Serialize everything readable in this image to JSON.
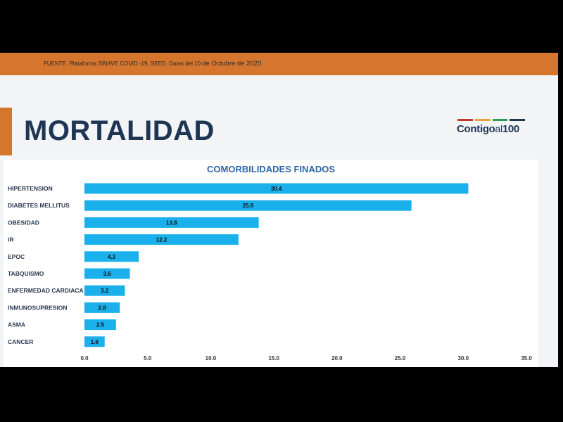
{
  "source": {
    "text_prefix": "FUENTE. Plataforma SINAVE COVID -19, SEED. Datos del 10 ",
    "text_suffix": "de Octubre de 2020"
  },
  "page_title": "MORTALIDAD",
  "logo": {
    "text_main": "Contigo",
    "text_al": "al",
    "text_num": "100",
    "bar_colors": [
      "#c0392b",
      "#e8a33d",
      "#2e9e5b",
      "#1e3654"
    ]
  },
  "colors": {
    "accent_orange": "#d5752e",
    "title_navy": "#1e3654",
    "bar_fill": "#1ab0ec",
    "chart_title": "#2d66a8"
  },
  "chart_data": {
    "type": "bar",
    "orientation": "horizontal",
    "title": "COMORBILIDADES FINADOS",
    "categories": [
      "HIPERTENSION",
      "DIABETES MELLITUS",
      "OBESIDAD",
      "IR",
      "EPOC",
      "TABQUISMO",
      "ENFERMEDAD CARDIACA",
      "INMUNOSUPRESION",
      "ASMA",
      "CANCER"
    ],
    "values": [
      30.4,
      25.9,
      13.8,
      12.2,
      4.3,
      3.6,
      3.2,
      2.8,
      2.5,
      1.6
    ],
    "xticks": [
      "0.0",
      "5.0",
      "10.0",
      "15.0",
      "20.0",
      "25.0",
      "30.0",
      "35.0"
    ],
    "xlim": [
      0,
      35
    ],
    "grid": false,
    "legend": "none"
  }
}
